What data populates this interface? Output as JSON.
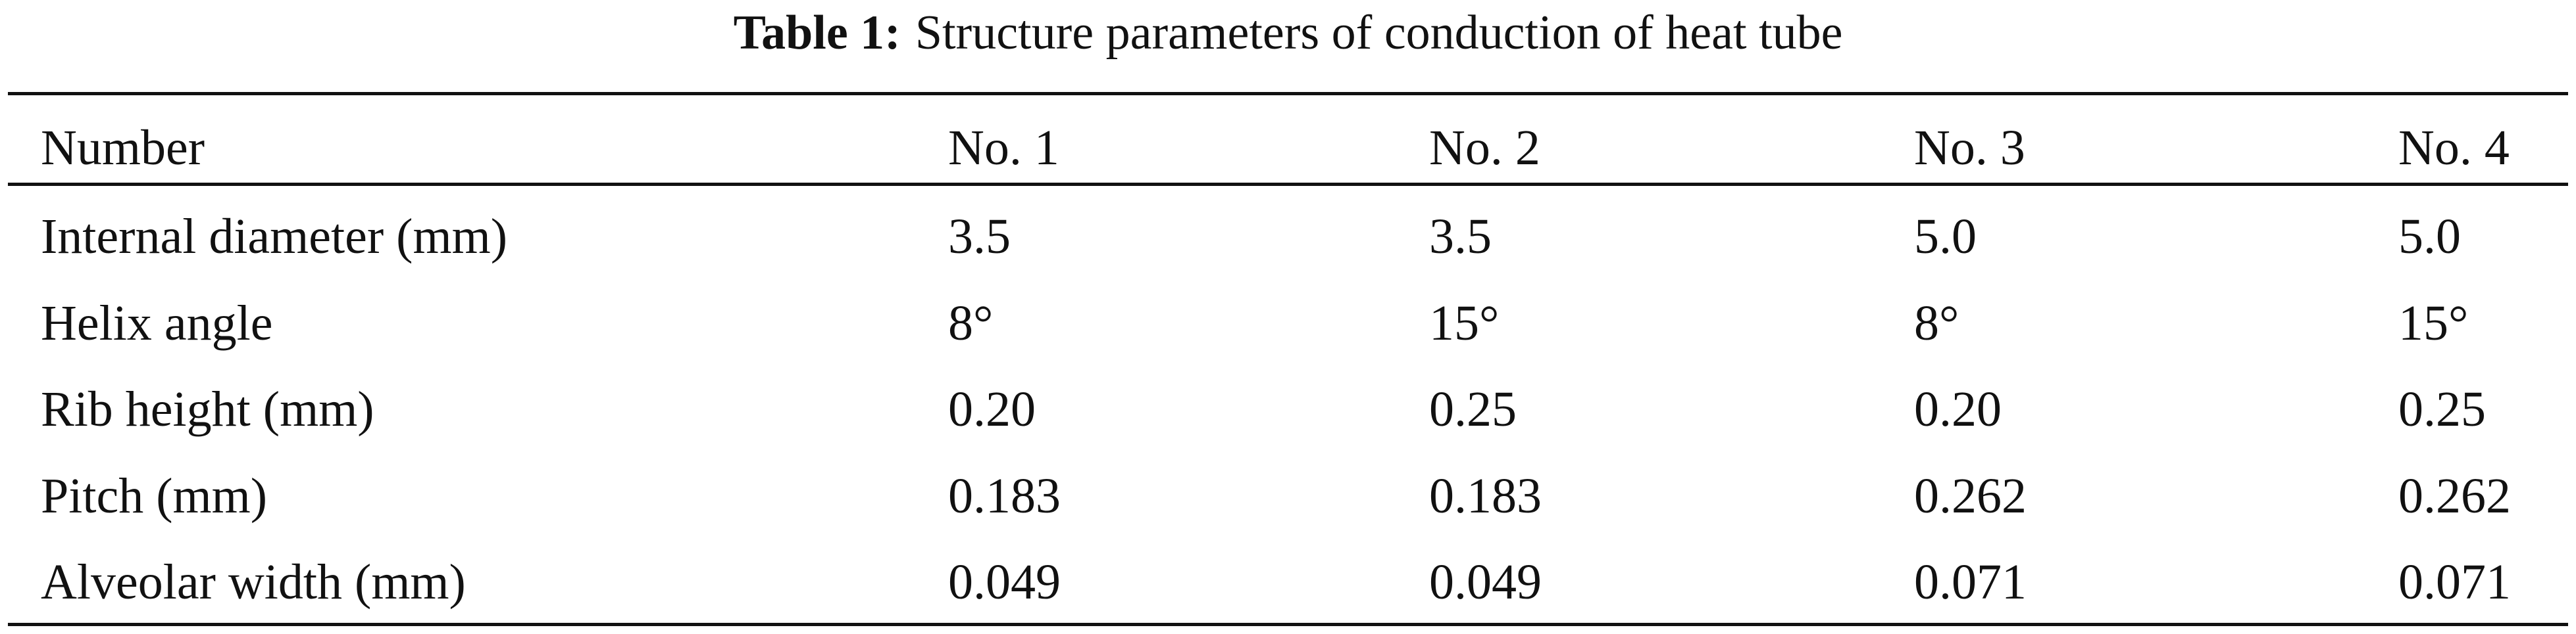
{
  "caption": {
    "label": "Table 1:",
    "text": "Structure parameters of conduction of heat tube"
  },
  "table": {
    "header": [
      "Number",
      "No. 1",
      "No. 2",
      "No. 3",
      "No. 4"
    ],
    "rows": [
      [
        "Internal diameter (mm)",
        "3.5",
        "3.5",
        "5.0",
        "5.0"
      ],
      [
        "Helix angle",
        "8°",
        "15°",
        "8°",
        "15°"
      ],
      [
        "Rib height (mm)",
        "0.20",
        "0.25",
        "0.20",
        "0.25"
      ],
      [
        "Pitch (mm)",
        "0.183",
        "0.183",
        "0.262",
        "0.262"
      ],
      [
        "Alveolar width (mm)",
        "0.049",
        "0.049",
        "0.071",
        "0.071"
      ]
    ]
  }
}
